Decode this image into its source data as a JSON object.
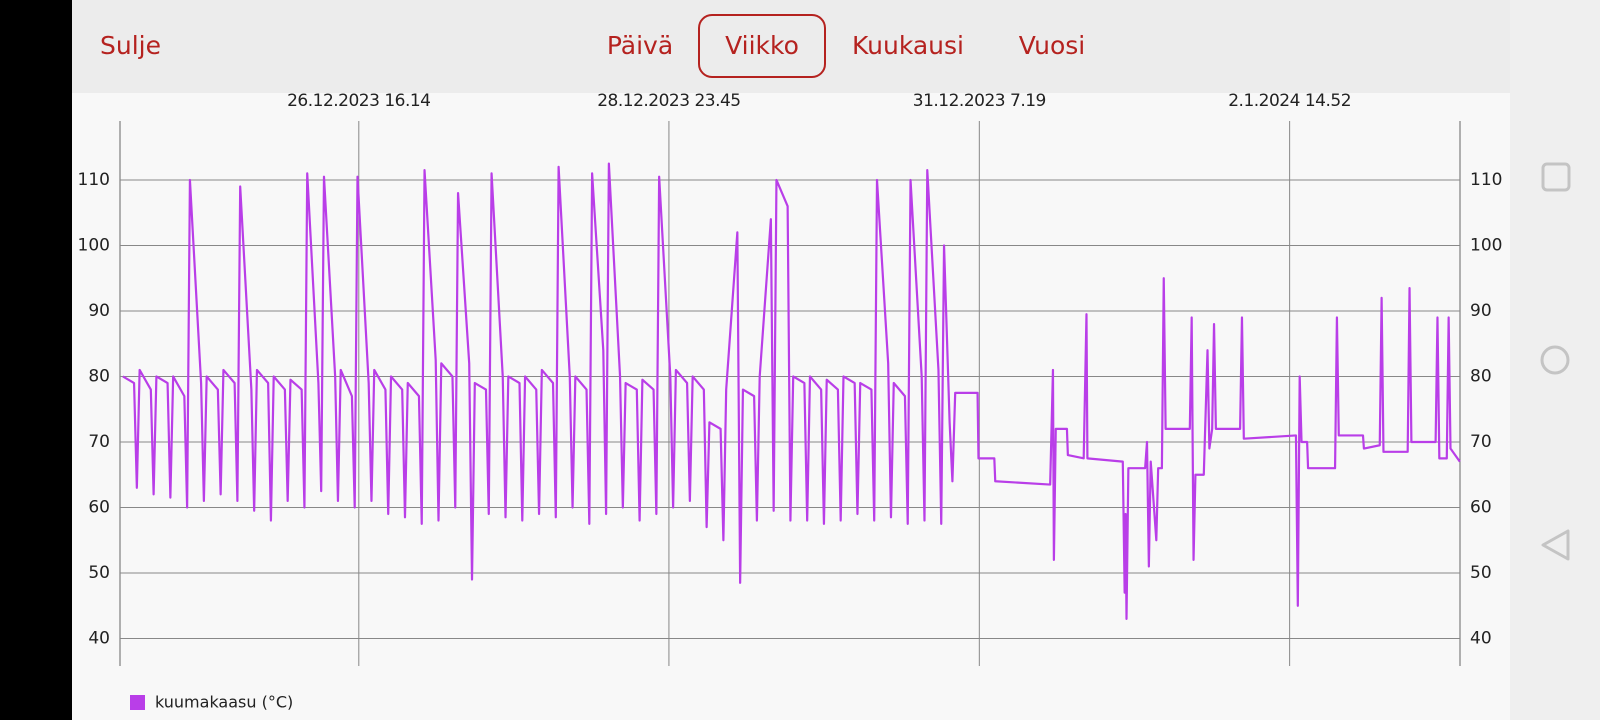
{
  "nav": {
    "close": "Sulje",
    "tabs": [
      "Päivä",
      "Viikko",
      "Kuukausi",
      "Vuosi"
    ],
    "selected_tab": "Viikko"
  },
  "chart_data": {
    "type": "line",
    "x": [
      "24.12.2023 22.00",
      "25.12.2023 0.00",
      "25.12.2023 0.30",
      "25.12.2023 1.00",
      "25.12.2023 3.00",
      "25.12.2023 3.30",
      "25.12.2023 4.00",
      "25.12.2023 6.00",
      "25.12.2023 6.30",
      "25.12.2023 7.00",
      "25.12.2023 9.00",
      "25.12.2023 9.30",
      "25.12.2023 10.00",
      "25.12.2023 12.00",
      "25.12.2023 12.30",
      "25.12.2023 13.00",
      "25.12.2023 15.00",
      "25.12.2023 15.30",
      "25.12.2023 16.00",
      "25.12.2023 18.00",
      "25.12.2023 18.30",
      "25.12.2023 19.00",
      "25.12.2023 21.00",
      "25.12.2023 21.30",
      "25.12.2023 22.00",
      "26.12.2023 0.00",
      "26.12.2023 0.30",
      "26.12.2023 1.00",
      "26.12.2023 3.00",
      "26.12.2023 3.30",
      "26.12.2023 4.00",
      "26.12.2023 6.00",
      "26.12.2023 6.30",
      "26.12.2023 7.00",
      "26.12.2023 9.00",
      "26.12.2023 9.30",
      "26.12.2023 10.00",
      "26.12.2023 12.00",
      "26.12.2023 12.30",
      "26.12.2023 13.00",
      "26.12.2023 15.00",
      "26.12.2023 15.30",
      "26.12.2023 16.00",
      "26.12.2023 18.00",
      "26.12.2023 18.30",
      "26.12.2023 19.00",
      "26.12.2023 21.00",
      "26.12.2023 21.30",
      "26.12.2023 22.00",
      "27.12.2023 0.00",
      "27.12.2023 0.30",
      "27.12.2023 1.00",
      "27.12.2023 3.00",
      "27.12.2023 3.30",
      "27.12.2023 4.00",
      "27.12.2023 6.00",
      "27.12.2023 6.30",
      "27.12.2023 7.00",
      "27.12.2023 9.00",
      "27.12.2023 9.30",
      "27.12.2023 10.00",
      "27.12.2023 12.00",
      "27.12.2023 12.30",
      "27.12.2023 13.00",
      "27.12.2023 15.00",
      "27.12.2023 15.30",
      "27.12.2023 16.00",
      "27.12.2023 18.00",
      "27.12.2023 18.30",
      "27.12.2023 19.00",
      "27.12.2023 21.00",
      "27.12.2023 21.30",
      "27.12.2023 22.00",
      "28.12.2023 0.00",
      "28.12.2023 0.30",
      "28.12.2023 1.00",
      "28.12.2023 3.00",
      "28.12.2023 3.30",
      "28.12.2023 4.00",
      "28.12.2023 6.00",
      "28.12.2023 6.30",
      "28.12.2023 7.00",
      "28.12.2023 9.00",
      "28.12.2023 9.30",
      "28.12.2023 10.00",
      "28.12.2023 12.00",
      "28.12.2023 12.30",
      "28.12.2023 13.00",
      "28.12.2023 15.00",
      "28.12.2023 15.30",
      "28.12.2023 16.00",
      "28.12.2023 18.00",
      "28.12.2023 18.30",
      "28.12.2023 19.00",
      "28.12.2023 21.00",
      "28.12.2023 21.30",
      "28.12.2023 22.00",
      "29.12.2023 0.00",
      "29.12.2023 0.30",
      "29.12.2023 1.00",
      "29.12.2023 3.00",
      "29.12.2023 3.30",
      "29.12.2023 4.00",
      "29.12.2023 6.00",
      "29.12.2023 6.30",
      "29.12.2023 7.00",
      "29.12.2023 9.00",
      "29.12.2023 9.30",
      "29.12.2023 10.00",
      "29.12.2023 12.00",
      "29.12.2023 12.30",
      "29.12.2023 13.00",
      "29.12.2023 15.00",
      "29.12.2023 15.30",
      "29.12.2023 16.00",
      "29.12.2023 18.00",
      "29.12.2023 18.30",
      "29.12.2023 19.00",
      "29.12.2023 21.00",
      "29.12.2023 21.30",
      "29.12.2023 22.00",
      "30.12.2023 0.00",
      "30.12.2023 0.30",
      "30.12.2023 1.00",
      "30.12.2023 3.00",
      "30.12.2023 3.30",
      "30.12.2023 4.00",
      "30.12.2023 6.00",
      "30.12.2023 6.30",
      "30.12.2023 7.00",
      "30.12.2023 9.00",
      "30.12.2023 9.30",
      "30.12.2023 10.00",
      "30.12.2023 12.00",
      "30.12.2023 12.30",
      "30.12.2023 13.00",
      "30.12.2023 15.00",
      "30.12.2023 15.30",
      "30.12.2023 16.00",
      "30.12.2023 18.00",
      "30.12.2023 18.30",
      "30.12.2023 19.00",
      "30.12.2023 21.00",
      "30.12.2023 21.30",
      "30.12.2023 22.00",
      "31.12.2023 0.00",
      "31.12.2023 0.30",
      "31.12.2023 1.00",
      "31.12.2023 2.00",
      "31.12.2023 2.30",
      "31.12.2023 3.00",
      "31.12.2023 7.00",
      "31.12.2023 7.10",
      "31.12.2023 10.00",
      "31.12.2023 10.10",
      "31.12.2023 20.00",
      "31.12.2023 20.30",
      "31.12.2023 20.40",
      "31.12.2023 21.00",
      "31.12.2023 23.00",
      "31.12.2023 23.10",
      "1.1.2024 2.00",
      "1.1.2024 2.30",
      "1.1.2024 2.40",
      "1.1.2024 9.00",
      "1.1.2024 9.20",
      "1.1.2024 9.30",
      "1.1.2024 9.40",
      "1.1.2024 10.00",
      "1.1.2024 13.00",
      "1.1.2024 13.20",
      "1.1.2024 13.40",
      "1.1.2024 14.00",
      "1.1.2024 15.00",
      "1.1.2024 15.20",
      "1.1.2024 16.00",
      "1.1.2024 16.20",
      "1.1.2024 16.40",
      "1.1.2024 21.00",
      "1.1.2024 21.20",
      "1.1.2024 21.40",
      "1.1.2024 22.00",
      "1.1.2024 23.30",
      "2.1.2024 0.10",
      "2.1.2024 0.30",
      "2.1.2024 1.00",
      "2.1.2024 1.20",
      "2.1.2024 1.40",
      "2.1.2024 6.00",
      "2.1.2024 6.20",
      "2.1.2024 6.40",
      "2.1.2024 16.00",
      "2.1.2024 16.20",
      "2.1.2024 16.40",
      "2.1.2024 17.00",
      "2.1.2024 18.00",
      "2.1.2024 18.10",
      "2.1.2024 23.00",
      "2.1.2024 23.20",
      "2.1.2024 23.40",
      "3.1.2024 4.00",
      "3.1.2024 4.10",
      "3.1.2024 7.00",
      "3.1.2024 7.20",
      "3.1.2024 7.40",
      "3.1.2024 12.00",
      "3.1.2024 12.20",
      "3.1.2024 12.40",
      "3.1.2024 17.00",
      "3.1.2024 17.20",
      "3.1.2024 17.40",
      "3.1.2024 19.00",
      "3.1.2024 19.20",
      "3.1.2024 19.40",
      "3.1.2024 21.20"
    ],
    "series": [
      {
        "name": "kuumakaasu (°C)",
        "color": "#b93ee8",
        "values": [
          80,
          79,
          63,
          81,
          78,
          62,
          80,
          79,
          61.5,
          80,
          77,
          60,
          110,
          79,
          61,
          80,
          78,
          62,
          81,
          79,
          61,
          109,
          78,
          59.5,
          81,
          79,
          58,
          80,
          78,
          61,
          79.5,
          78,
          60,
          111,
          79,
          62.5,
          110.5,
          80,
          61,
          81,
          77,
          60,
          110.5,
          79,
          61,
          81,
          78,
          59,
          80,
          78,
          58.5,
          79,
          77,
          57.5,
          111.5,
          82.5,
          58,
          82,
          80,
          60,
          108,
          82,
          49,
          79,
          78,
          59,
          111,
          80,
          58.5,
          80,
          79,
          58,
          80,
          78,
          59,
          81,
          79,
          58.5,
          112,
          80,
          60,
          80,
          78,
          57.5,
          111,
          84,
          59,
          112.5,
          80,
          60,
          79,
          78,
          58,
          79.5,
          78,
          59,
          110.5,
          80,
          60,
          81,
          79,
          61,
          80,
          78,
          57,
          73,
          72,
          55,
          78,
          102,
          48.5,
          78,
          77,
          58,
          80,
          104,
          59.5,
          110,
          106,
          58,
          80,
          79,
          58,
          80,
          78,
          57.5,
          79.5,
          78,
          58,
          80,
          79,
          59,
          79,
          78,
          58,
          110,
          82,
          58.5,
          79,
          77,
          57.5,
          110,
          80,
          58,
          111.5,
          81,
          57.5,
          100,
          73,
          64,
          77.5,
          77.5,
          67.5,
          67.5,
          64,
          63.5,
          81,
          52,
          72,
          72,
          68,
          67.5,
          89.5,
          67.5,
          67,
          47,
          59,
          43,
          66,
          66,
          70,
          51,
          67,
          55,
          66,
          66,
          95,
          72,
          72,
          89,
          52,
          65,
          65,
          84,
          69,
          72,
          88,
          72,
          72,
          89,
          70.5,
          71,
          45,
          80,
          70,
          70,
          66,
          66,
          89,
          71,
          71,
          69,
          69.5,
          92,
          68.5,
          68.5,
          93.5,
          70,
          70,
          89,
          67.5,
          67.5,
          89,
          69,
          67
        ]
      }
    ],
    "xlim": [
      "24.12.2023 21.29",
      "3.1.2024 21.22"
    ],
    "xticks": [
      "26.12.2023 16.14",
      "28.12.2023 23.45",
      "31.12.2023 7.19",
      "2.1.2024 14.52"
    ],
    "ylim": [
      35.8,
      119
    ],
    "yticks": [
      40,
      50,
      60,
      70,
      80,
      90,
      100,
      110
    ],
    "grid": true,
    "mirror_y_axis": true
  }
}
